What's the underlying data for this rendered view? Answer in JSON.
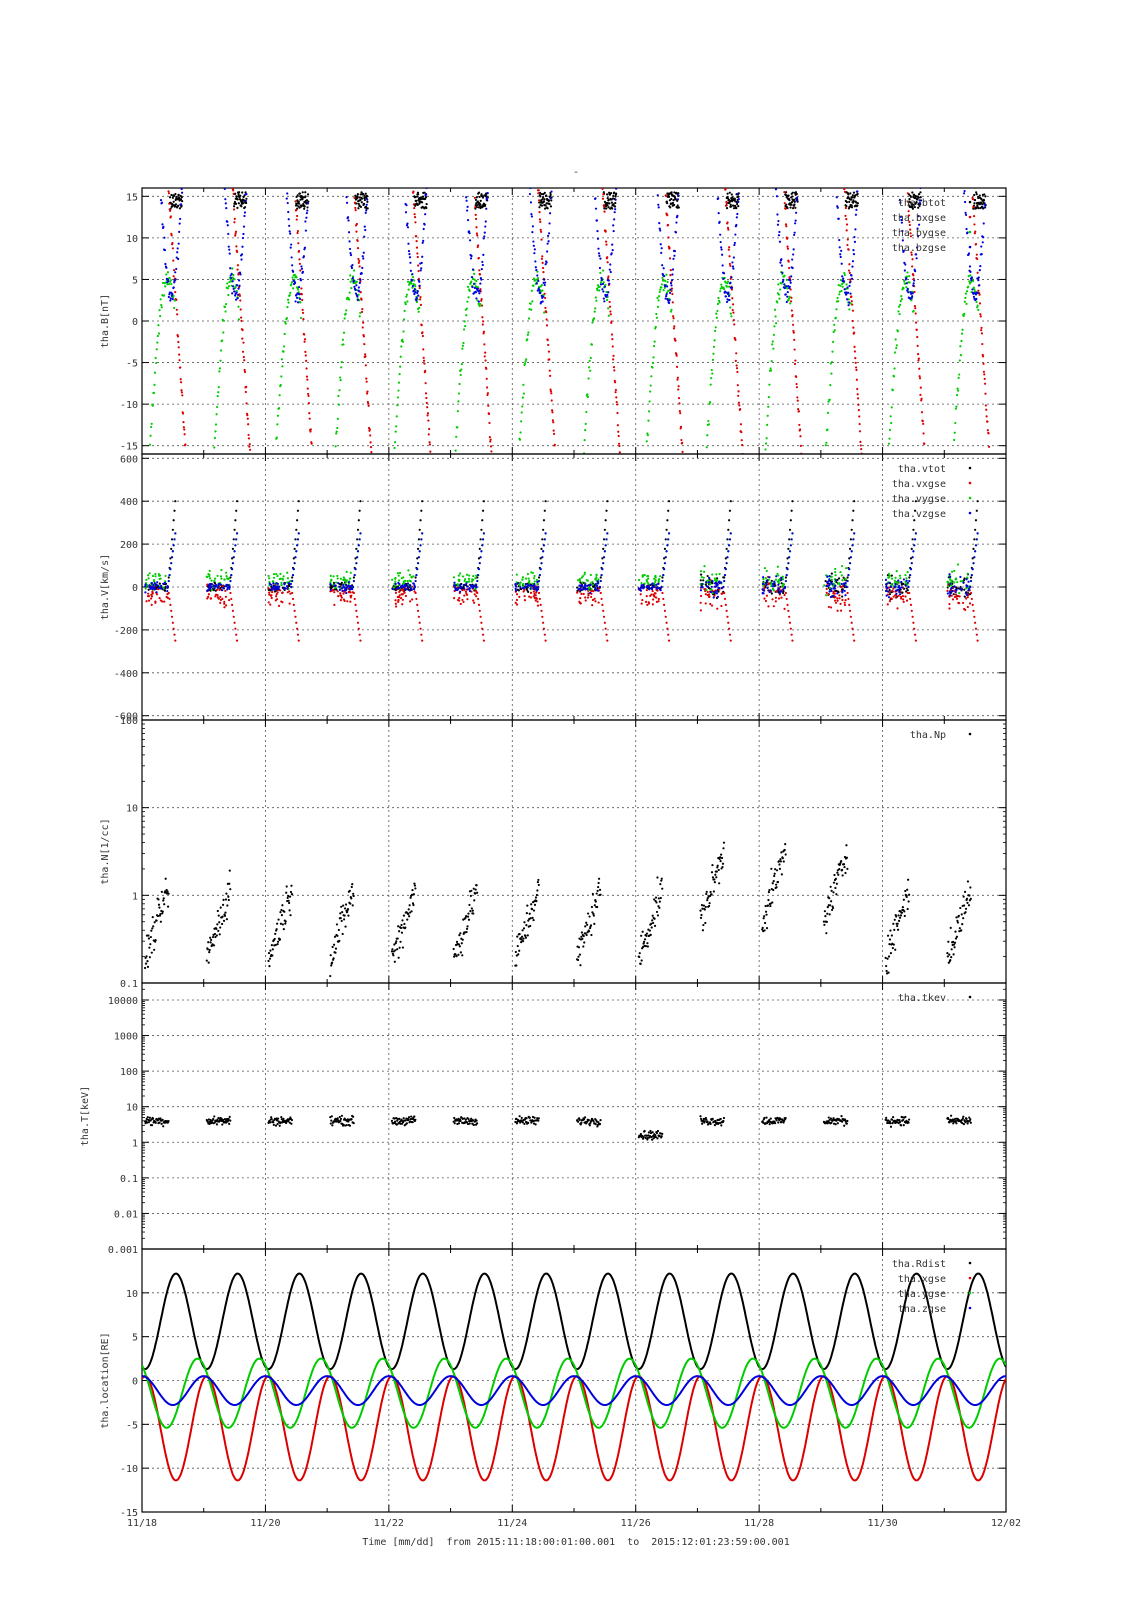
{
  "figure": {
    "top_mark": "-",
    "x_axis": {
      "tick_labels": [
        "11/18",
        "11/20",
        "11/22",
        "11/24",
        "11/26",
        "11/28",
        "11/30",
        "12/02"
      ],
      "range_days": [
        0,
        14
      ],
      "label": "Time [mm/dd]  from 2015:11:18:00:01:00.001  to  2015:12:01:23:59:00.001"
    },
    "colors": {
      "black": "#000000",
      "red": "#dd0000",
      "green": "#00cc00",
      "blue": "#0000dd"
    }
  },
  "chart_data": [
    {
      "type": "scatter",
      "ylabel": "tha.B[nT]",
      "ylim": [
        -16,
        16
      ],
      "yticks": [
        -15,
        -10,
        -5,
        0,
        5,
        10,
        15
      ],
      "yticklabels": [
        "-15",
        "-10",
        "-5",
        "0",
        "5",
        "10",
        "15"
      ],
      "legend_placement": "top-right",
      "series": [
        {
          "name": "tha.btot",
          "color": "black",
          "legend_label": "tha.btot",
          "description": "mostly above +16 nT, offscale"
        },
        {
          "name": "tha.bxgse",
          "color": "red",
          "legend_label": "tha.bxgse",
          "description": "steep diagonal tracks from +16 down to -16 near each perigee"
        },
        {
          "name": "tha.bygse",
          "color": "green",
          "legend_label": "tha.bygse",
          "description": "rising arcs from about -15 to about +5 between perigees"
        },
        {
          "name": "tha.bzgse",
          "color": "blue",
          "legend_label": "tha.bzgse",
          "description": "falls from +16 to about +3 near each perigee"
        }
      ]
    },
    {
      "type": "scatter",
      "ylabel": "tha.V[km/s]",
      "ylim": [
        -620,
        620
      ],
      "yticks": [
        -600,
        -400,
        -200,
        0,
        200,
        400,
        600
      ],
      "yticklabels": [
        "-600",
        "-400",
        "-200",
        "0",
        "200",
        "400",
        "600"
      ],
      "legend_placement": "top-right",
      "series": [
        {
          "name": "tha.vtot",
          "color": "black",
          "legend_label": "tha.vtot"
        },
        {
          "name": "tha.vxgse",
          "color": "red",
          "legend_label": "tha.vxgse"
        },
        {
          "name": "tha.vygse",
          "color": "green",
          "legend_label": "tha.vygse"
        },
        {
          "name": "tha.vzgse",
          "color": "blue",
          "legend_label": "tha.vzgse"
        }
      ]
    },
    {
      "type": "scatter",
      "ylabel": "tha.N[1/cc]",
      "yscale": "log",
      "ylim": [
        0.1,
        100
      ],
      "yticks": [
        0.1,
        1,
        10,
        100
      ],
      "yticklabels": [
        "0.1",
        "1",
        "10",
        "100"
      ],
      "legend_placement": "top-right",
      "series": [
        {
          "name": "tha.Np",
          "color": "black",
          "legend_label": "tha.Np"
        }
      ]
    },
    {
      "type": "scatter",
      "ylabel": "tha.T[keV]",
      "yscale": "log",
      "ylim": [
        0.001,
        30000
      ],
      "yticks": [
        0.001,
        0.01,
        0.1,
        1,
        10,
        100,
        1000,
        10000
      ],
      "yticklabels": [
        "0.001",
        "0.01",
        "0.1",
        "1",
        "10",
        "100",
        "1000",
        "10000"
      ],
      "legend_placement": "top-right",
      "series": [
        {
          "name": "tha.tkev",
          "color": "black",
          "legend_label": "tha.tkev"
        }
      ]
    },
    {
      "type": "line",
      "ylabel": "tha.location[RE]",
      "ylim": [
        -15,
        15
      ],
      "yticks": [
        -15,
        -10,
        -5,
        0,
        5,
        10
      ],
      "yticklabels": [
        "-15",
        "-10",
        "-5",
        "0",
        "5",
        "10"
      ],
      "legend_placement": "top-right",
      "orbit_period_days": 1.0,
      "orbit_count": 14,
      "series": [
        {
          "name": "tha.Rdist",
          "color": "black",
          "legend_label": "tha.Rdist",
          "max": 12.2,
          "min": 1.3
        },
        {
          "name": "tha.xgse",
          "color": "red",
          "legend_label": "tha.xgse",
          "max": 0.5,
          "min": -11.4
        },
        {
          "name": "tha.ygse",
          "color": "green",
          "legend_label": "tha.ygse",
          "max": 2.5,
          "min": -5.4
        },
        {
          "name": "tha.zgse",
          "color": "blue",
          "legend_label": "tha.zgse",
          "max": 0.5,
          "min": -2.8
        }
      ]
    }
  ]
}
